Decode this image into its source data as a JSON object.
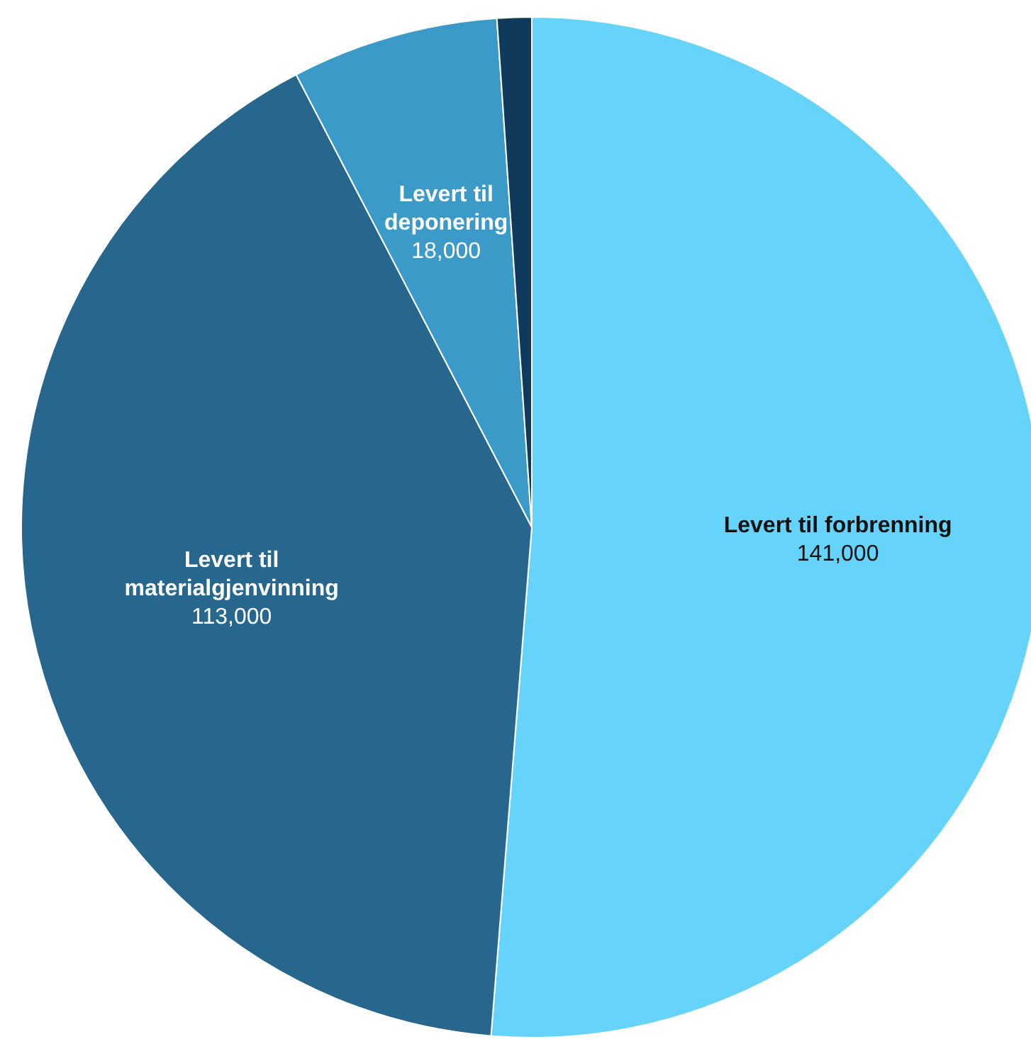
{
  "chart_data": {
    "type": "pie",
    "categories": [
      "Levert til forbrenning",
      "Levert til materialgjenvinning",
      "Levert til deponering",
      null
    ],
    "values": [
      141000,
      113000,
      18000,
      3000
    ],
    "colors": [
      "#66d4fa",
      "#27678e",
      "#3c9ac8",
      "#0f3a5c"
    ],
    "value_labels": [
      "141,000",
      "113,000",
      "18,000",
      null
    ]
  }
}
